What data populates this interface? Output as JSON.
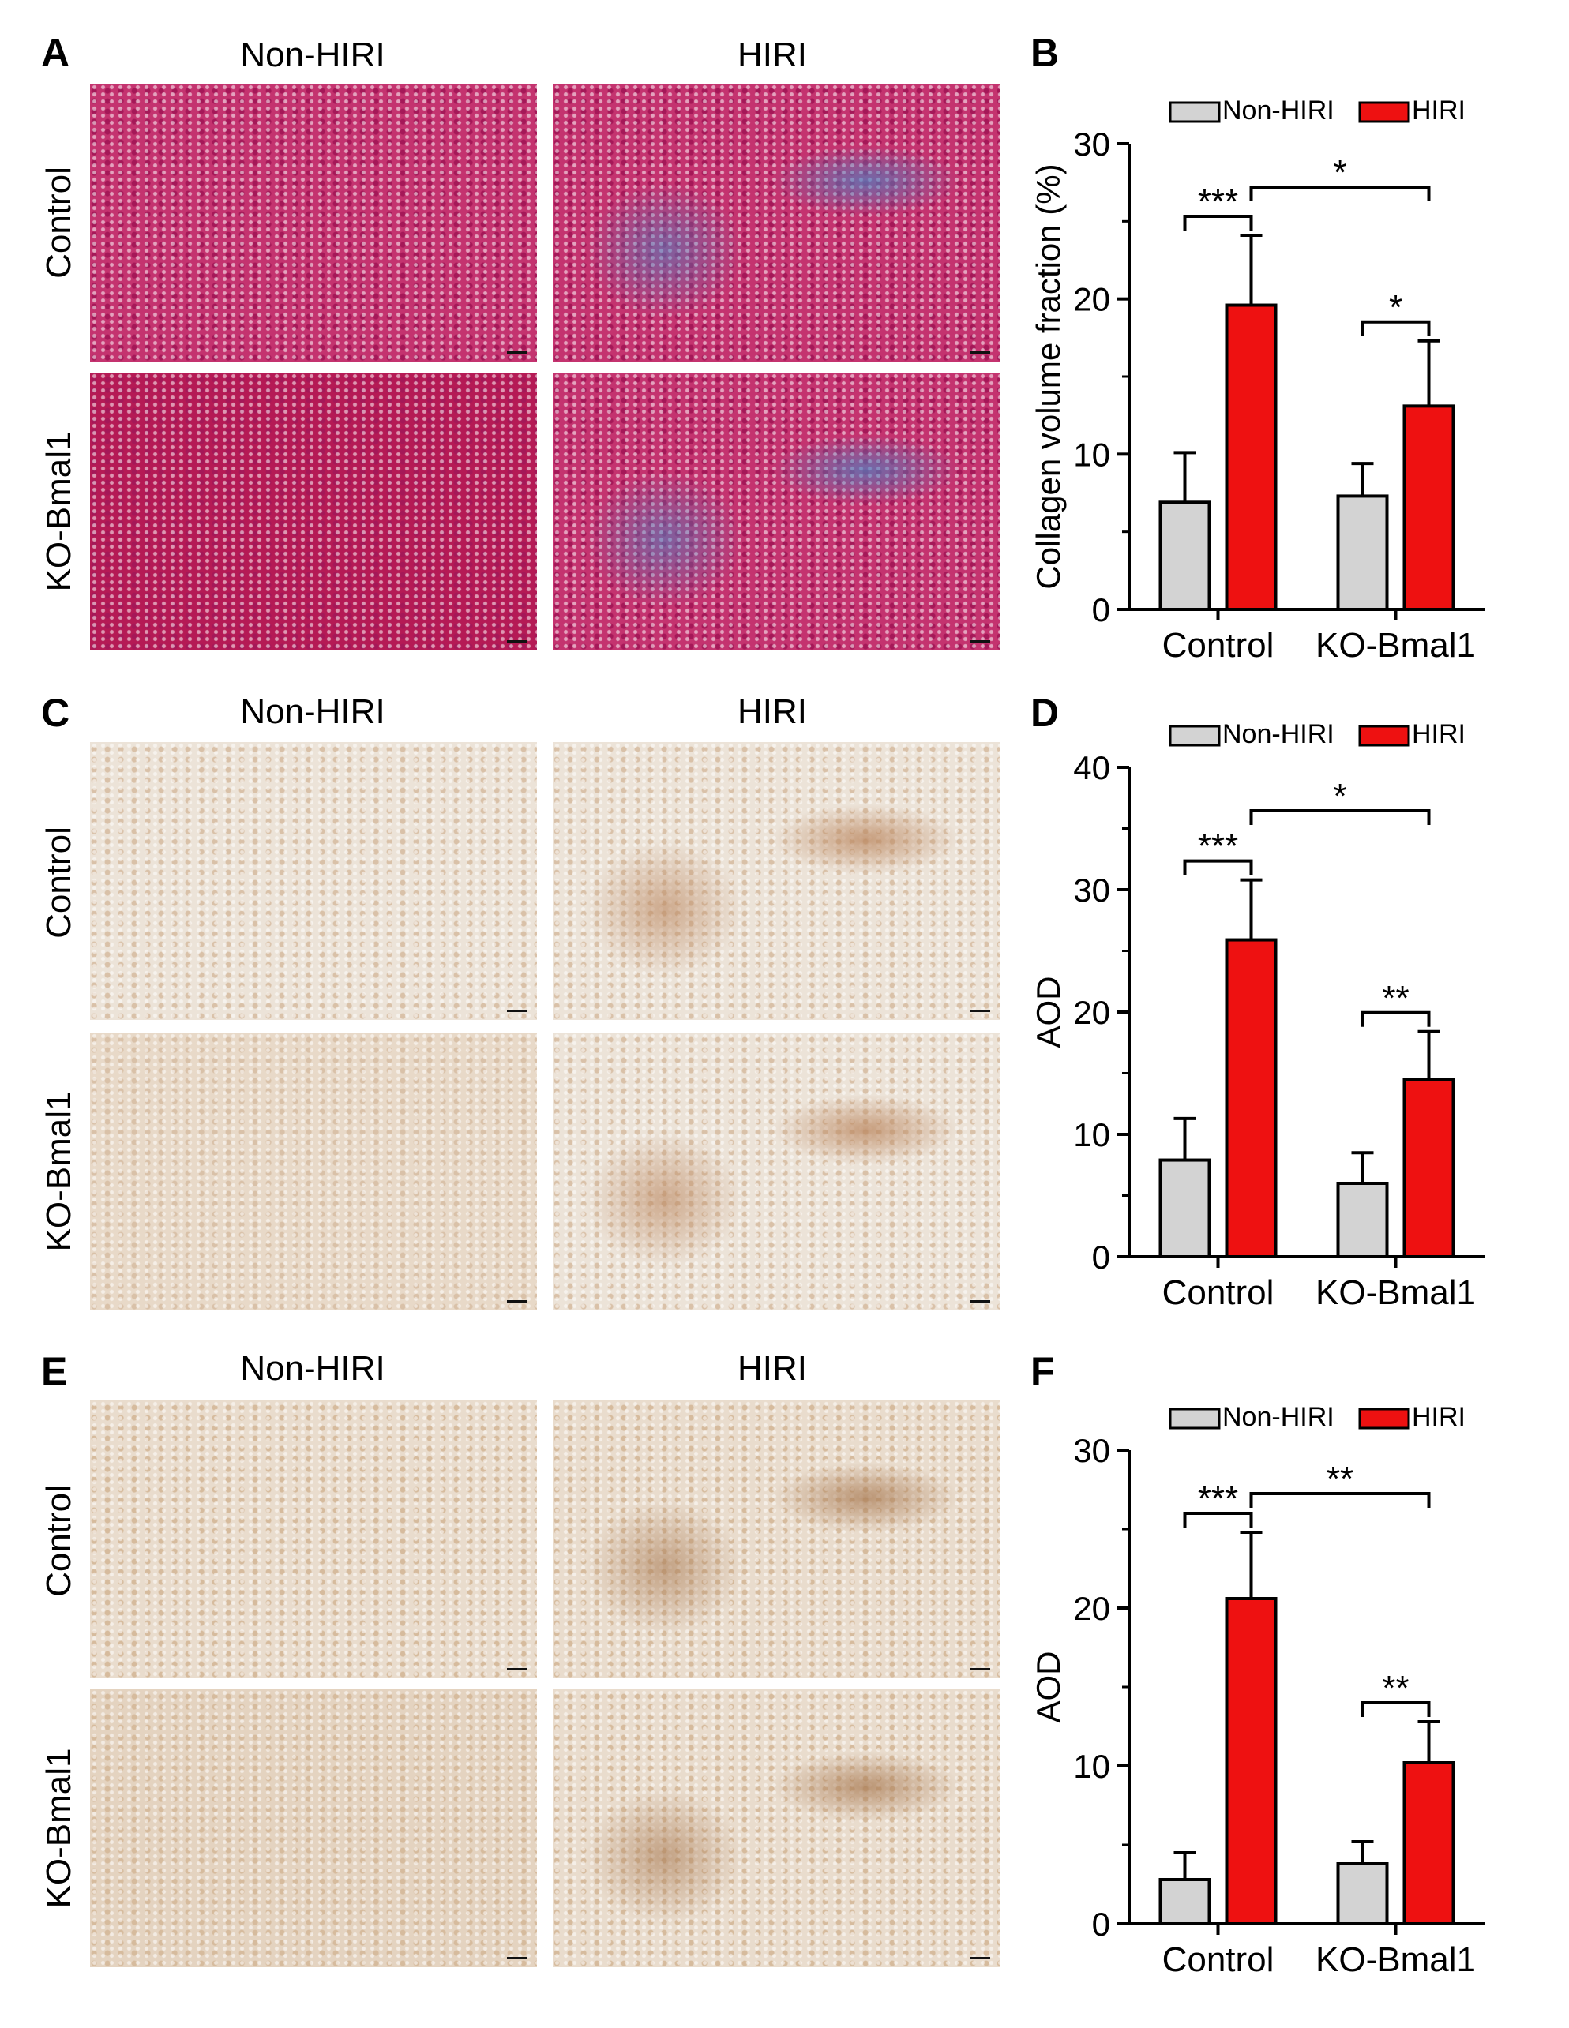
{
  "panel_letters": [
    "A",
    "B",
    "C",
    "D",
    "E",
    "F"
  ],
  "micrograph_sections": [
    {
      "col_labels": [
        "Non-HIRI",
        "HIRI"
      ],
      "row_labels": [
        "Control",
        "KO-Bmal1"
      ],
      "colors": {
        "base": "#c4336f",
        "alt": "#a51858",
        "stain": "#4f7fc0",
        "base2": "#b51a55"
      }
    },
    {
      "col_labels": [
        "Non-HIRI",
        "HIRI"
      ],
      "row_labels": [
        "Control",
        "KO-Bmal1"
      ],
      "colors": {
        "base": "#ece3d8",
        "alt": "#d9c1a8",
        "stain": "#b9835a",
        "base2": "#e8d9c8"
      }
    },
    {
      "col_labels": [
        "Non-HIRI",
        "HIRI"
      ],
      "row_labels": [
        "Control",
        "KO-Bmal1"
      ],
      "colors": {
        "base": "#e9dccd",
        "alt": "#d6bb9d",
        "stain": "#a97a52",
        "base2": "#e4d3c0"
      }
    }
  ],
  "colors": {
    "non_hiri": "#d3d3d3",
    "hiri": "#ee1111",
    "outline": "#000000"
  },
  "chart_data": [
    {
      "type": "bar",
      "panel": "B",
      "categories": [
        "Control",
        "KO-Bmal1"
      ],
      "ylabel": "Collagen volume fraction (%)",
      "ylim": [
        0,
        30
      ],
      "yticks": [
        0,
        10,
        20,
        30
      ],
      "legend_position": "top-left",
      "series": [
        {
          "name": "Non-HIRI",
          "values": [
            6.9,
            7.3
          ],
          "errors": [
            3.2,
            2.1
          ]
        },
        {
          "name": "HIRI",
          "values": [
            19.6,
            13.1
          ],
          "errors": [
            4.5,
            4.2
          ]
        }
      ],
      "annotations": [
        {
          "label": "***",
          "from": [
            0,
            0
          ],
          "to": [
            0,
            1
          ]
        },
        {
          "label": "*",
          "from": [
            0,
            1
          ],
          "to": [
            1,
            1
          ]
        },
        {
          "label": "*",
          "from": [
            1,
            0
          ],
          "to": [
            1,
            1
          ]
        }
      ]
    },
    {
      "type": "bar",
      "panel": "D",
      "categories": [
        "Control",
        "KO-Bmal1"
      ],
      "ylabel": "AOD",
      "ylim": [
        0,
        40
      ],
      "yticks": [
        0,
        10,
        20,
        30,
        40
      ],
      "legend_position": "top-left",
      "series": [
        {
          "name": "Non-HIRI",
          "values": [
            7.9,
            6.0
          ],
          "errors": [
            3.4,
            2.5
          ]
        },
        {
          "name": "HIRI",
          "values": [
            25.9,
            14.5
          ],
          "errors": [
            4.9,
            3.9
          ]
        }
      ],
      "annotations": [
        {
          "label": "***",
          "from": [
            0,
            0
          ],
          "to": [
            0,
            1
          ]
        },
        {
          "label": "*",
          "from": [
            0,
            1
          ],
          "to": [
            1,
            1
          ]
        },
        {
          "label": "**",
          "from": [
            1,
            0
          ],
          "to": [
            1,
            1
          ]
        }
      ]
    },
    {
      "type": "bar",
      "panel": "F",
      "categories": [
        "Control",
        "KO-Bmal1"
      ],
      "ylabel": "AOD",
      "ylim": [
        0,
        30
      ],
      "yticks": [
        0,
        10,
        20,
        30
      ],
      "legend_position": "top-left",
      "series": [
        {
          "name": "Non-HIRI",
          "values": [
            2.8,
            3.8
          ],
          "errors": [
            1.7,
            1.4
          ]
        },
        {
          "name": "HIRI",
          "values": [
            20.6,
            10.2
          ],
          "errors": [
            4.2,
            2.6
          ]
        }
      ],
      "annotations": [
        {
          "label": "***",
          "from": [
            0,
            0
          ],
          "to": [
            0,
            1
          ]
        },
        {
          "label": "**",
          "from": [
            0,
            1
          ],
          "to": [
            1,
            1
          ]
        },
        {
          "label": "**",
          "from": [
            1,
            0
          ],
          "to": [
            1,
            1
          ]
        }
      ]
    }
  ]
}
